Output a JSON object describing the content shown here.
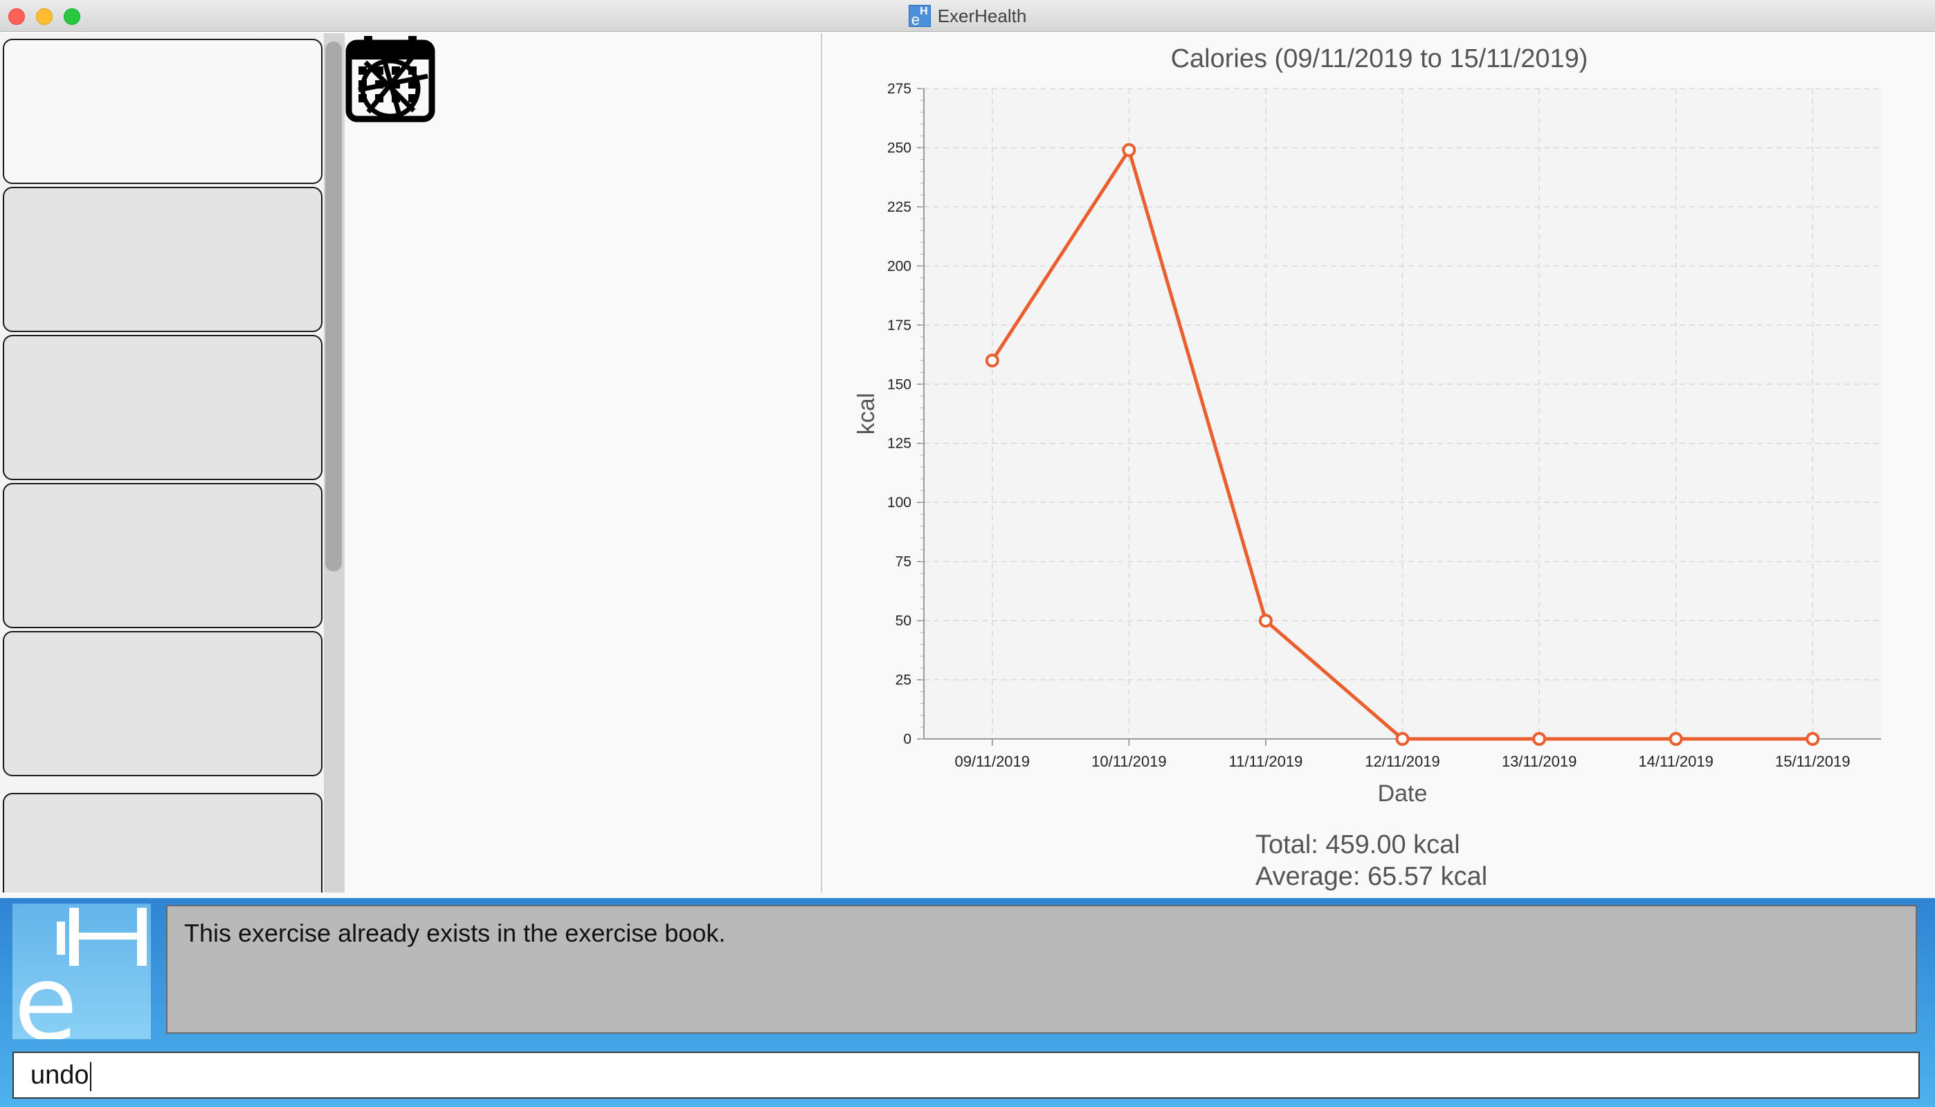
{
  "window": {
    "title": "ExerHealth",
    "app_icon": "exerhealth-app-icon"
  },
  "exercise_list": {
    "card_count": 6,
    "selected_index": 0
  },
  "calendar": {
    "icon": "calendar-icon"
  },
  "chart_data": {
    "type": "line",
    "title": "Calories (09/11/2019 to 15/11/2019)",
    "xlabel": "Date",
    "ylabel": "kcal",
    "categories": [
      "09/11/2019",
      "10/11/2019",
      "11/11/2019",
      "12/11/2019",
      "13/11/2019",
      "14/11/2019",
      "15/11/2019"
    ],
    "series": [
      {
        "values": [
          160,
          249,
          50,
          0,
          0,
          0,
          0
        ]
      }
    ],
    "ylim": [
      0,
      275
    ],
    "yticks": [
      0,
      25,
      50,
      75,
      100,
      125,
      150,
      175,
      200,
      225,
      250,
      275
    ],
    "grid": true,
    "line_color": "#ea5f2d",
    "plot_background": "#f4f4f4"
  },
  "summary": {
    "total": "Total: 459.00 kcal",
    "average": "Average: 65.57 kcal"
  },
  "result_display": {
    "text": "This exercise already exists in the exercise book."
  },
  "command_box": {
    "value": "undo"
  },
  "colors": {
    "bottom_gradient_top": "#2f84d3",
    "bottom_gradient_bottom": "#4eb2ee",
    "result_bg": "#b9b9b9"
  }
}
